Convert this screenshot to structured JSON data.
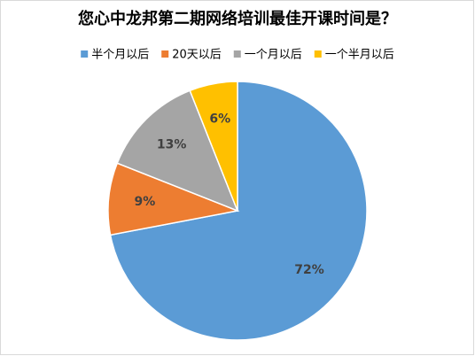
{
  "chart_data": {
    "type": "pie",
    "title": "您心中龙邦第二期网络培训最佳开课时间是？",
    "categories": [
      "半个月以后",
      "20天以后",
      "一个月以后",
      "一个半月以后"
    ],
    "values": [
      72,
      9,
      13,
      6
    ],
    "value_labels": [
      "72%",
      "9%",
      "13%",
      "6%"
    ],
    "colors": [
      "#5b9bd5",
      "#ed7d31",
      "#a5a5a5",
      "#ffc000"
    ],
    "legend": "top"
  }
}
